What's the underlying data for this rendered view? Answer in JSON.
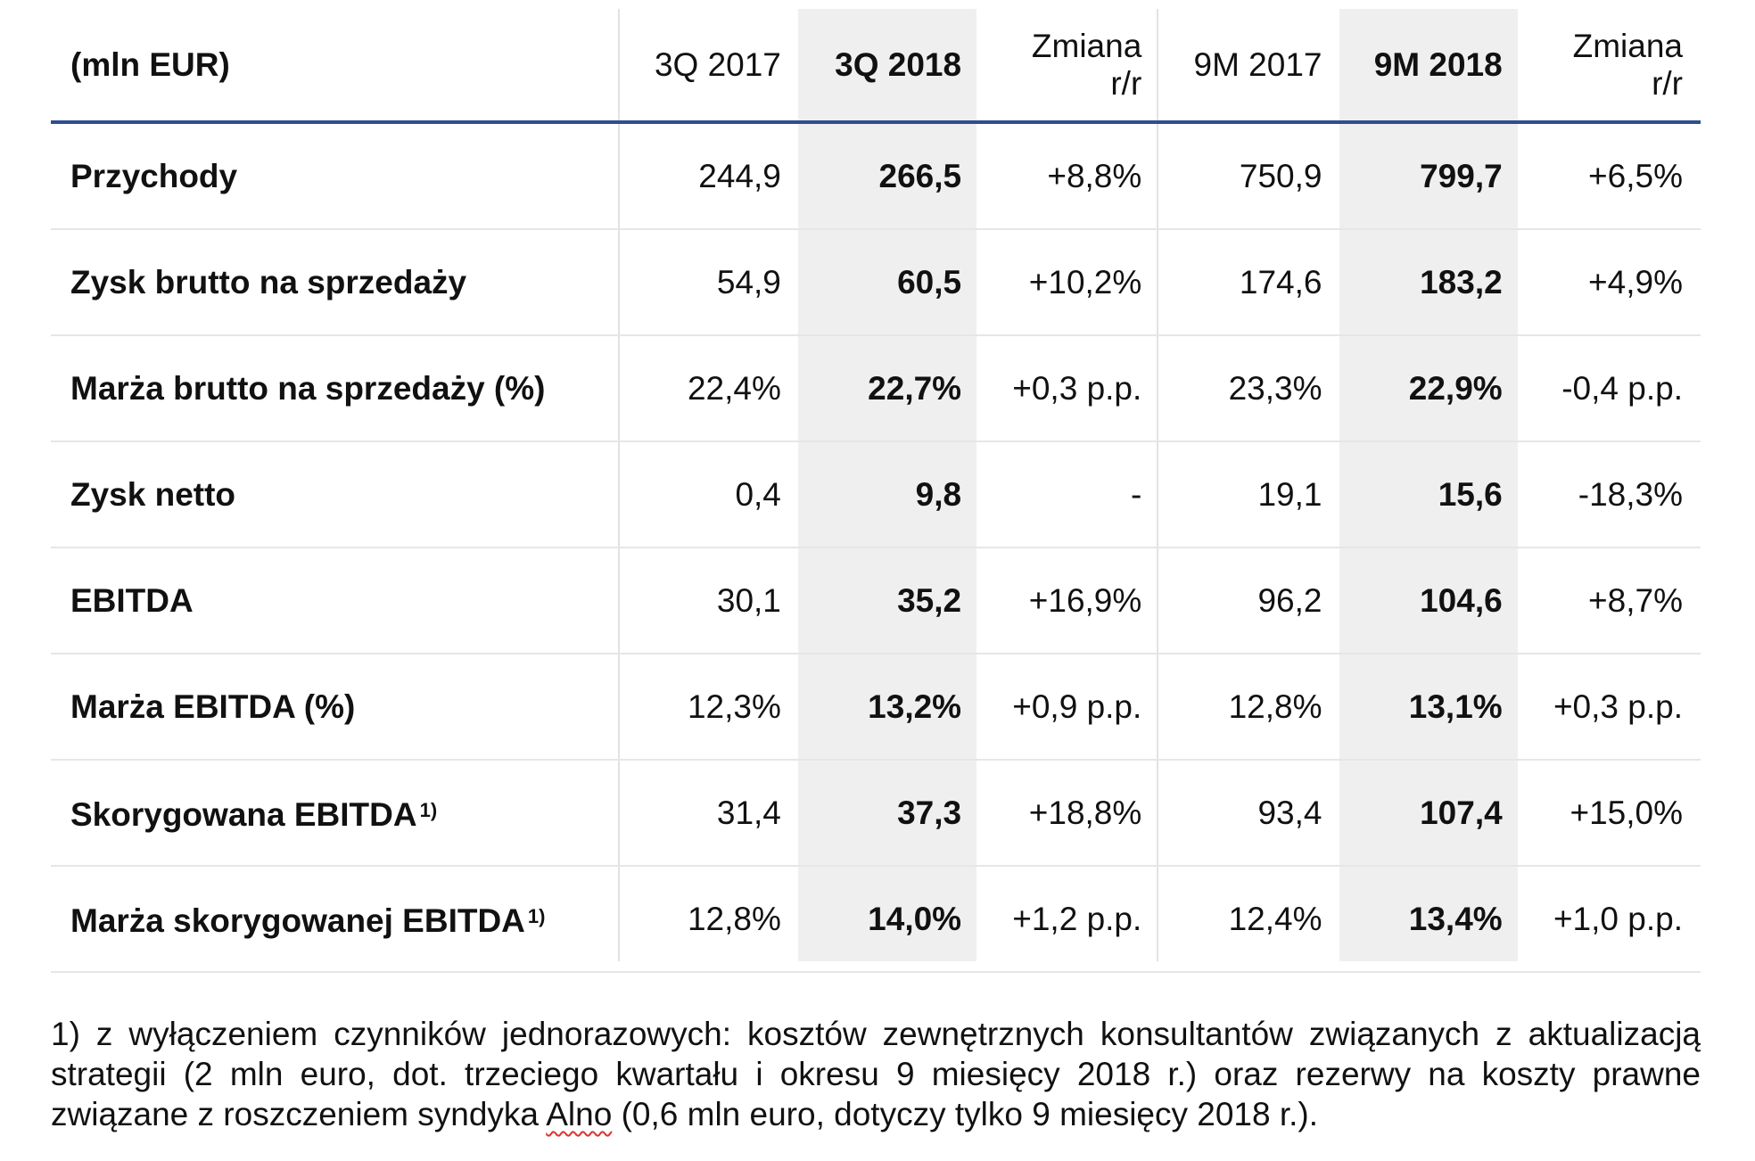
{
  "table": {
    "headers": {
      "label": "(mln EUR)",
      "q3_2017": "3Q 2017",
      "q3_2018": "3Q 2018",
      "q_change_line1": "Zmiana",
      "q_change_line2": "r/r",
      "m9_2017": "9M 2017",
      "m9_2018": "9M 2018",
      "m_change_line1": "Zmiana",
      "m_change_line2": "r/r"
    },
    "rows": [
      {
        "label": "Przychody",
        "note": "",
        "q3_2017": "244,9",
        "q3_2018": "266,5",
        "q_change": "+8,8%",
        "m9_2017": "750,9",
        "m9_2018": "799,7",
        "m_change": "+6,5%"
      },
      {
        "label": "Zysk brutto na sprzedaży",
        "note": "",
        "q3_2017": "54,9",
        "q3_2018": "60,5",
        "q_change": "+10,2%",
        "m9_2017": "174,6",
        "m9_2018": "183,2",
        "m_change": "+4,9%"
      },
      {
        "label": "Marża brutto na sprzedaży (%)",
        "note": "",
        "q3_2017": "22,4%",
        "q3_2018": "22,7%",
        "q_change": "+0,3 p.p.",
        "m9_2017": "23,3%",
        "m9_2018": "22,9%",
        "m_change": "-0,4 p.p."
      },
      {
        "label": "Zysk netto",
        "note": "",
        "q3_2017": "0,4",
        "q3_2018": "9,8",
        "q_change": "-",
        "m9_2017": "19,1",
        "m9_2018": "15,6",
        "m_change": "-18,3%"
      },
      {
        "label": "EBITDA",
        "note": "",
        "q3_2017": "30,1",
        "q3_2018": "35,2",
        "q_change": "+16,9%",
        "m9_2017": "96,2",
        "m9_2018": "104,6",
        "m_change": "+8,7%"
      },
      {
        "label": "Marża EBITDA (%)",
        "note": "",
        "q3_2017": "12,3%",
        "q3_2018": "13,2%",
        "q_change": "+0,9 p.p.",
        "m9_2017": "12,8%",
        "m9_2018": "13,1%",
        "m_change": "+0,3 p.p."
      },
      {
        "label": "Skorygowana EBITDA",
        "note": "1)",
        "q3_2017": "31,4",
        "q3_2018": "37,3",
        "q_change": "+18,8%",
        "m9_2017": "93,4",
        "m9_2018": "107,4",
        "m_change": "+15,0%"
      },
      {
        "label": "Marża skorygowanej EBITDA",
        "note": "1)",
        "q3_2017": "12,8%",
        "q3_2018": "14,0%",
        "q_change": "+1,2 p.p.",
        "m9_2017": "12,4%",
        "m9_2018": "13,4%",
        "m_change": "+1,0 p.p."
      }
    ]
  },
  "footnote": {
    "text_before": "1) z wyłączeniem czynników jednorazowych: kosztów zewnętrznych konsultantów związanych z aktualizacją strategii (2 mln euro, dot. trzeciego kwartału i okresu 9 miesięcy 2018 r.) oraz rezerwy na koszty prawne związane z roszczeniem syndyka ",
    "marked_word": "Alno",
    "text_after": " (0,6 mln euro, dotyczy tylko 9 miesięcy 2018 r.)."
  },
  "colors": {
    "header_rule": "#2c4f8f",
    "highlight_column": "#efefef",
    "row_divider": "#e6e6e6",
    "spellcheck_underline": "#e03030"
  }
}
